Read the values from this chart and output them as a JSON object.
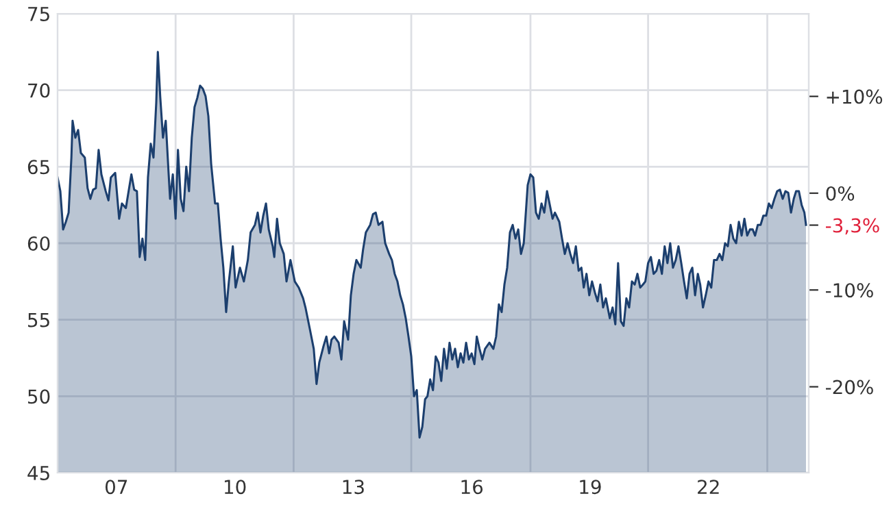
{
  "chart_data": {
    "type": "area",
    "x": [
      2005.51,
      2005.58,
      2005.65,
      2005.72,
      2005.79,
      2005.86,
      2005.89,
      2005.96,
      2006.03,
      2006.1,
      2006.2,
      2006.27,
      2006.34,
      2006.41,
      2006.48,
      2006.55,
      2006.62,
      2006.73,
      2006.8,
      2006.86,
      2006.97,
      2007.07,
      2007.14,
      2007.24,
      2007.31,
      2007.38,
      2007.45,
      2007.52,
      2007.59,
      2007.66,
      2007.73,
      2007.8,
      2007.87,
      2007.94,
      2008.01,
      2008.05,
      2008.11,
      2008.18,
      2008.25,
      2008.32,
      2008.36,
      2008.43,
      2008.5,
      2008.56,
      2008.63,
      2008.7,
      2008.77,
      2008.84,
      2008.91,
      2008.98,
      2009.05,
      2009.12,
      2009.19,
      2009.26,
      2009.33,
      2009.4,
      2009.5,
      2009.57,
      2009.64,
      2009.71,
      2009.78,
      2009.85,
      2009.95,
      2010.02,
      2010.13,
      2010.23,
      2010.33,
      2010.4,
      2010.51,
      2010.58,
      2010.65,
      2010.72,
      2010.79,
      2010.86,
      2010.96,
      2011.0,
      2011.07,
      2011.14,
      2011.24,
      2011.31,
      2011.41,
      2011.52,
      2011.62,
      2011.73,
      2011.79,
      2011.9,
      2012.0,
      2012.07,
      2012.14,
      2012.25,
      2012.32,
      2012.39,
      2012.45,
      2012.52,
      2012.63,
      2012.7,
      2012.77,
      2012.87,
      2012.94,
      2013.01,
      2013.08,
      2013.19,
      2013.25,
      2013.32,
      2013.43,
      2013.5,
      2013.57,
      2013.64,
      2013.74,
      2013.81,
      2013.91,
      2013.98,
      2014.05,
      2014.12,
      2014.19,
      2014.26,
      2014.33,
      2014.4,
      2014.47,
      2014.54,
      2014.61,
      2014.68,
      2014.75,
      2014.82,
      2014.88,
      2014.95,
      2015.02,
      2015.09,
      2015.16,
      2015.23,
      2015.3,
      2015.37,
      2015.44,
      2015.51,
      2015.58,
      2015.65,
      2015.72,
      2015.79,
      2015.86,
      2015.93,
      2016.0,
      2016.07,
      2016.13,
      2016.2,
      2016.27,
      2016.34,
      2016.45,
      2016.55,
      2016.62,
      2016.69,
      2016.76,
      2016.83,
      2016.9,
      2016.97,
      2017.04,
      2017.11,
      2017.18,
      2017.25,
      2017.32,
      2017.42,
      2017.49,
      2017.56,
      2017.63,
      2017.7,
      2017.77,
      2017.84,
      2017.91,
      2017.98,
      2018.05,
      2018.11,
      2018.22,
      2018.29,
      2018.36,
      2018.43,
      2018.5,
      2018.57,
      2018.64,
      2018.71,
      2018.78,
      2018.84,
      2018.91,
      2018.98,
      2019.05,
      2019.12,
      2019.19,
      2019.26,
      2019.33,
      2019.4,
      2019.5,
      2019.57,
      2019.64,
      2019.71,
      2019.78,
      2019.85,
      2019.92,
      2019.99,
      2020.06,
      2020.13,
      2020.2,
      2020.27,
      2020.34,
      2020.4,
      2020.47,
      2020.54,
      2020.61,
      2020.68,
      2020.75,
      2020.82,
      2020.89,
      2020.96,
      2021.03,
      2021.1,
      2021.17,
      2021.24,
      2021.31,
      2021.38,
      2021.45,
      2021.52,
      2021.59,
      2021.66,
      2021.73,
      2021.79,
      2021.86,
      2021.93,
      2022.0,
      2022.07,
      2022.14,
      2022.21,
      2022.28,
      2022.35,
      2022.42,
      2022.49,
      2022.56,
      2022.63,
      2022.7,
      2022.77,
      2022.84,
      2022.91,
      2022.98,
      2023.05,
      2023.12,
      2023.18,
      2023.25,
      2023.32,
      2023.39,
      2023.46,
      2023.53,
      2023.6,
      2023.67,
      2023.74,
      2023.81,
      2023.88,
      2023.95,
      2024.02,
      2024.09,
      2024.16,
      2024.22,
      2024.29,
      2024.36,
      2024.43,
      2024.47
    ],
    "series": [
      {
        "color": "#1c3f6e",
        "values": [
          64.3,
          63.4,
          60.9,
          61.4,
          62.0,
          65.6,
          68.0,
          66.9,
          67.4,
          65.9,
          65.6,
          63.6,
          62.9,
          63.5,
          63.6,
          66.1,
          64.5,
          63.4,
          62.8,
          64.3,
          64.6,
          61.6,
          62.6,
          62.3,
          63.4,
          64.5,
          63.5,
          63.4,
          59.1,
          60.3,
          58.9,
          64.3,
          66.5,
          65.6,
          69.2,
          72.5,
          69.6,
          66.9,
          68.0,
          64.7,
          62.9,
          64.5,
          61.6,
          66.1,
          62.9,
          62.1,
          65.0,
          63.4,
          66.9,
          68.9,
          69.5,
          70.3,
          70.1,
          69.6,
          68.3,
          65.2,
          62.6,
          62.6,
          60.3,
          58.4,
          55.5,
          57.5,
          59.8,
          57.1,
          58.4,
          57.5,
          58.9,
          60.7,
          61.2,
          62.0,
          60.7,
          61.8,
          62.6,
          60.9,
          59.8,
          59.1,
          61.6,
          60.0,
          59.3,
          57.5,
          58.9,
          57.5,
          57.1,
          56.4,
          55.8,
          54.4,
          53.1,
          50.8,
          52.2,
          53.3,
          53.9,
          52.8,
          53.7,
          53.9,
          53.5,
          52.4,
          54.9,
          53.7,
          56.6,
          58.0,
          58.9,
          58.4,
          59.6,
          60.7,
          61.2,
          61.9,
          62.0,
          61.2,
          61.4,
          60.0,
          59.3,
          58.9,
          58.0,
          57.5,
          56.6,
          56.0,
          55.1,
          53.9,
          52.6,
          50.0,
          50.4,
          47.3,
          48.0,
          49.8,
          50.0,
          51.1,
          50.4,
          52.6,
          52.2,
          51.0,
          53.1,
          51.8,
          53.5,
          52.4,
          53.1,
          51.9,
          52.8,
          52.2,
          53.5,
          52.4,
          52.8,
          52.1,
          53.9,
          53.1,
          52.4,
          53.1,
          53.5,
          53.1,
          53.9,
          56.0,
          55.5,
          57.3,
          58.4,
          60.7,
          61.2,
          60.3,
          60.9,
          59.3,
          60.0,
          63.8,
          64.5,
          64.3,
          62.0,
          61.6,
          62.6,
          62.0,
          63.4,
          62.5,
          61.6,
          62.0,
          61.4,
          60.3,
          59.3,
          60.0,
          59.3,
          58.7,
          59.8,
          58.2,
          58.4,
          57.1,
          58.0,
          56.6,
          57.5,
          56.8,
          56.2,
          57.3,
          55.8,
          56.4,
          55.1,
          55.8,
          54.7,
          58.7,
          54.9,
          54.6,
          56.4,
          55.8,
          57.5,
          57.3,
          58.0,
          57.1,
          57.3,
          57.5,
          58.7,
          59.1,
          58.0,
          58.2,
          58.9,
          58.0,
          59.8,
          58.7,
          60.0,
          58.4,
          58.9,
          59.8,
          58.7,
          57.5,
          56.4,
          58.0,
          58.4,
          56.6,
          58.0,
          57.3,
          55.8,
          56.6,
          57.5,
          57.1,
          58.9,
          58.9,
          59.3,
          58.9,
          60.0,
          59.8,
          61.2,
          60.3,
          60.0,
          61.4,
          60.5,
          61.6,
          60.5,
          60.9,
          60.9,
          60.5,
          61.2,
          61.2,
          61.8,
          61.8,
          62.6,
          62.3,
          62.9,
          63.4,
          63.5,
          62.9,
          63.4,
          63.3,
          62.0,
          62.9,
          63.4,
          63.4,
          62.5,
          62.0,
          61.2
        ]
      }
    ],
    "xlim": [
      2005.51,
      2024.54
    ],
    "xticks": [
      {
        "value": 2007,
        "label": "07"
      },
      {
        "value": 2010,
        "label": "10"
      },
      {
        "value": 2013,
        "label": "13"
      },
      {
        "value": 2016,
        "label": "16"
      },
      {
        "value": 2019,
        "label": "19"
      },
      {
        "value": 2022,
        "label": "22"
      }
    ],
    "ylim": [
      45,
      75
    ],
    "yticks": [
      45,
      50,
      55,
      60,
      65,
      70,
      75
    ],
    "y2lim": [
      -28.88,
      18.54
    ],
    "y2ticks": [
      {
        "value": 10,
        "label": "+10%"
      },
      {
        "value": 0,
        "label": "0%"
      },
      {
        "value": -3.3,
        "label": "-3,3%"
      },
      {
        "value": -10,
        "label": "-10%"
      },
      {
        "value": -20,
        "label": "-20%"
      }
    ],
    "grid": "y",
    "ref_lines": [
      {
        "axis": "x",
        "value": 2008.5,
        "color": "#dddfe4",
        "line_style": "solid"
      },
      {
        "axis": "x",
        "value": 2011.49,
        "color": "#dddfe4",
        "line_style": "solid"
      },
      {
        "axis": "x",
        "value": 2014.47,
        "color": "#dddfe4",
        "line_style": "solid"
      },
      {
        "axis": "x",
        "value": 2017.49,
        "color": "#dddfe4",
        "line_style": "solid"
      },
      {
        "axis": "x",
        "value": 2020.47,
        "color": "#dddfe4",
        "line_style": "solid"
      },
      {
        "axis": "x",
        "value": 2023.49,
        "color": "#dddfe4",
        "line_style": "solid"
      }
    ],
    "legend": false
  }
}
